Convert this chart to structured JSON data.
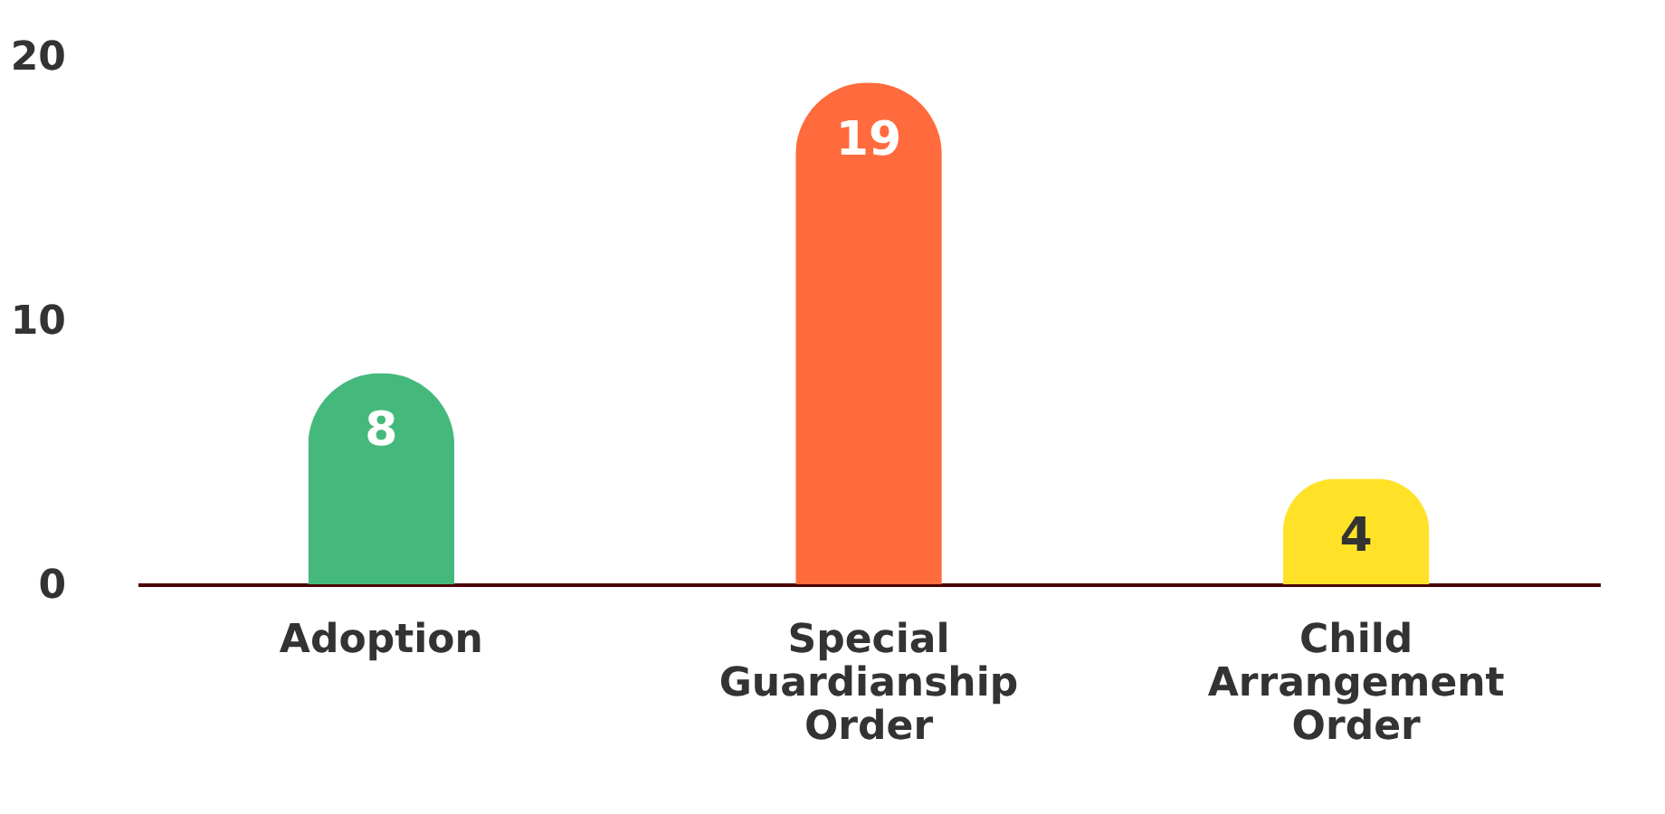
{
  "chart_data": {
    "type": "bar",
    "categories": [
      "Adoption",
      "Special Guardianship Order",
      "Child Arrangement Order"
    ],
    "values": [
      8,
      19,
      4
    ],
    "colors": [
      "#45b97c",
      "#ff6b3d",
      "#ffe227"
    ],
    "ylim": [
      0,
      20
    ],
    "yticks": [
      0,
      10,
      20
    ],
    "grid": false,
    "data_labels": true
  }
}
